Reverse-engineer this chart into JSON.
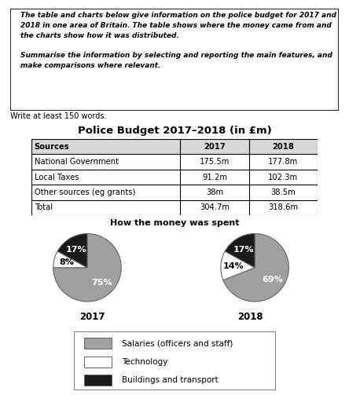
{
  "title_box_lines": [
    "The table and charts below give information on the police budget for 2017 and",
    "2018 in one area of Britain. The table shows where the money came from and",
    "the charts show how it was distributed.",
    "",
    "Summarise the information by selecting and reporting the main features, and",
    "make comparisons where relevant."
  ],
  "write_text": "Write at least 150 words.",
  "table_title": "Police Budget 2017–2018 (in £m)",
  "table_headers": [
    "Sources",
    "2017",
    "2018"
  ],
  "table_rows": [
    [
      "National Government",
      "175.5m",
      "177.8m"
    ],
    [
      "Local Taxes",
      "91.2m",
      "102.3m"
    ],
    [
      "Other sources (eg grants)",
      "38m",
      "38.5m"
    ],
    [
      "Total",
      "304.7m",
      "318.6m"
    ]
  ],
  "pie_title": "How the money was spent",
  "pie_2017": [
    75,
    8,
    17
  ],
  "pie_2018": [
    69,
    14,
    17
  ],
  "pie_colors": [
    "#a0a0a0",
    "#ffffff",
    "#1a1a1a"
  ],
  "pie_edgecolor": "#666666",
  "pie_year_2017": "2017",
  "pie_year_2018": "2018",
  "legend_labels": [
    "Salaries (officers and staff)",
    "Technology",
    "Buildings and transport"
  ],
  "legend_colors": [
    "#a0a0a0",
    "#ffffff",
    "#1a1a1a"
  ],
  "background_color": "#ffffff"
}
